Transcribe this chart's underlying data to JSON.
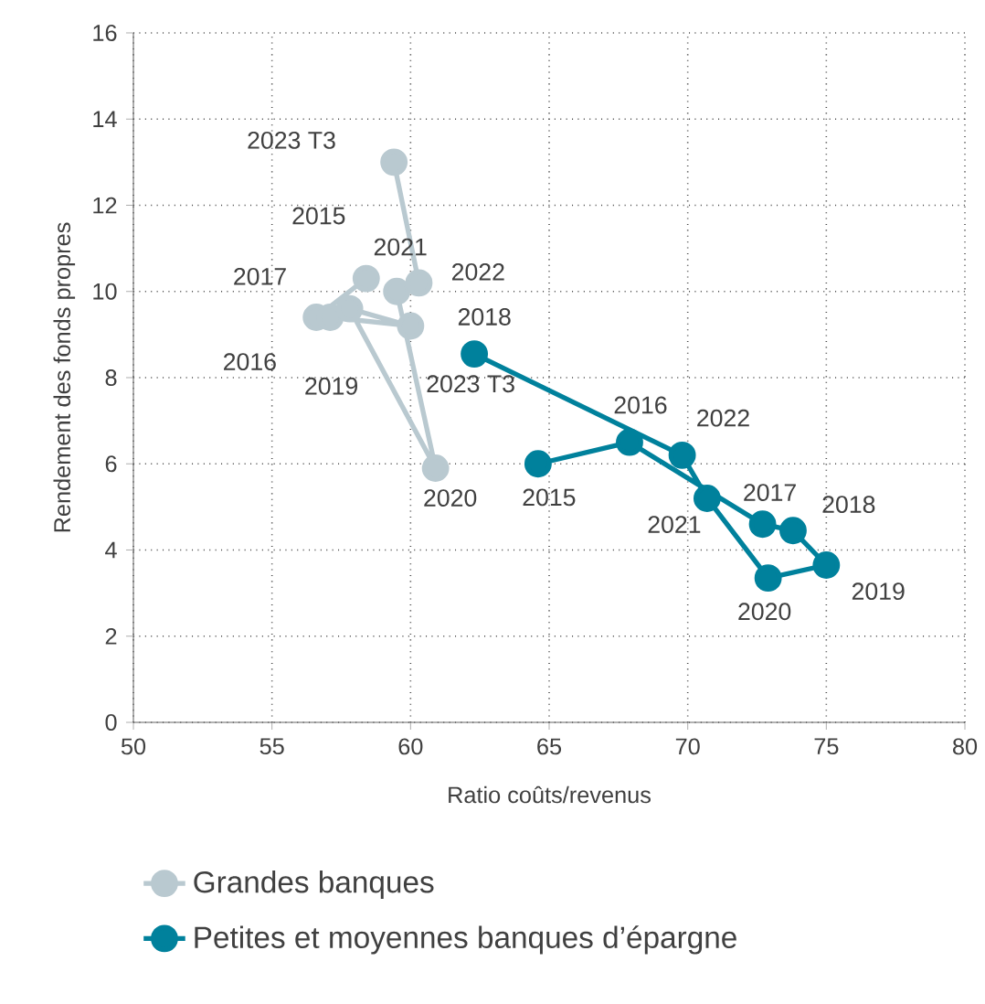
{
  "chart_data": {
    "type": "line",
    "xlabel": "Ratio coûts/revenus",
    "ylabel": "Rendement des fonds propres",
    "xlim": [
      50,
      80
    ],
    "xticks": [
      50,
      55,
      60,
      65,
      70,
      75,
      80
    ],
    "ylim": [
      0,
      16
    ],
    "yticks": [
      0,
      2,
      4,
      6,
      8,
      10,
      12,
      14,
      16
    ],
    "grid": true,
    "legend": "bottom",
    "marker": "circle",
    "line_style": "solid",
    "series": [
      {
        "name": "Grandes banques",
        "color": "#b9c9d0",
        "x": [
          58.4,
          56.6,
          57.1,
          60.0,
          57.8,
          60.9,
          59.5,
          60.3,
          59.4
        ],
        "values": [
          10.3,
          9.4,
          9.4,
          9.2,
          9.6,
          5.9,
          10.0,
          10.2,
          13.0
        ]
      },
      {
        "name": "Petites et moyennes banques d’épargne",
        "color": "#00819c",
        "x": [
          64.6,
          67.9,
          72.7,
          73.8,
          75.0,
          72.9,
          70.7,
          69.8,
          62.3
        ],
        "values": [
          6.0,
          6.5,
          4.6,
          4.45,
          3.65,
          3.35,
          5.2,
          6.2,
          8.55
        ]
      }
    ],
    "annotations": [
      {
        "text": "2015",
        "x": 58.4,
        "y": 10.3
      },
      {
        "text": "2016",
        "x": 56.6,
        "y": 9.4
      },
      {
        "text": "2017",
        "x": 57.1,
        "y": 9.4
      },
      {
        "text": "2018",
        "x": 60.0,
        "y": 9.2
      },
      {
        "text": "2019",
        "x": 57.8,
        "y": 9.6
      },
      {
        "text": "2020",
        "x": 60.9,
        "y": 5.9
      },
      {
        "text": "2021",
        "x": 59.5,
        "y": 10.0
      },
      {
        "text": "2022",
        "x": 60.3,
        "y": 10.2
      },
      {
        "text": "2023 T3",
        "x": 59.4,
        "y": 13.0
      },
      {
        "text": "2015",
        "x": 64.6,
        "y": 6.0
      },
      {
        "text": "2016",
        "x": 67.9,
        "y": 6.5
      },
      {
        "text": "2017",
        "x": 72.7,
        "y": 4.6
      },
      {
        "text": "2018",
        "x": 73.8,
        "y": 4.45
      },
      {
        "text": "2019",
        "x": 75.0,
        "y": 3.65
      },
      {
        "text": "2020",
        "x": 72.9,
        "y": 3.35
      },
      {
        "text": "2021",
        "x": 70.7,
        "y": 5.2
      },
      {
        "text": "2022",
        "x": 69.8,
        "y": 6.2
      },
      {
        "text": "2023 T3",
        "x": 62.3,
        "y": 8.55
      }
    ]
  }
}
